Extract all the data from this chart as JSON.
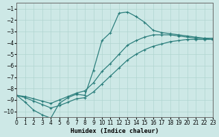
{
  "xlabel": "Humidex (Indice chaleur)",
  "background_color": "#cde8e6",
  "grid_color": "#b0d4d0",
  "line_color": "#2a7d7b",
  "xlim": [
    0,
    23
  ],
  "ylim": [
    -10.5,
    -0.5
  ],
  "yticks": [
    -10,
    -9,
    -8,
    -7,
    -6,
    -5,
    -4,
    -3,
    -2,
    -1
  ],
  "xticks": [
    0,
    1,
    2,
    3,
    4,
    5,
    6,
    7,
    8,
    9,
    10,
    11,
    12,
    13,
    14,
    15,
    16,
    17,
    18,
    19,
    20,
    21,
    22,
    23
  ],
  "line1_x": [
    0,
    1,
    2,
    3,
    4,
    5,
    6,
    7,
    8,
    9,
    10,
    11,
    12,
    13,
    14,
    15,
    16,
    17,
    18,
    19,
    20,
    21,
    22,
    23
  ],
  "line1_y": [
    -8.6,
    -9.2,
    -9.9,
    -10.3,
    -10.6,
    -9.3,
    -8.8,
    -8.5,
    -8.6,
    -6.4,
    -3.8,
    -3.1,
    -1.4,
    -1.3,
    -1.7,
    -2.2,
    -2.9,
    -3.1,
    -3.2,
    -3.3,
    -3.4,
    -3.5,
    -3.6,
    -3.7
  ],
  "line2_x": [
    0,
    1,
    2,
    3,
    4,
    5,
    6,
    7,
    8,
    9,
    10,
    11,
    12,
    13,
    14,
    15,
    16,
    17,
    18,
    19,
    20,
    21,
    22,
    23
  ],
  "line2_y": [
    -8.6,
    -8.7,
    -8.9,
    -9.1,
    -9.3,
    -9.0,
    -8.7,
    -8.4,
    -8.2,
    -7.5,
    -6.5,
    -5.8,
    -5.0,
    -4.2,
    -3.8,
    -3.5,
    -3.3,
    -3.3,
    -3.3,
    -3.4,
    -3.5,
    -3.6,
    -3.6,
    -3.6
  ],
  "line3_x": [
    0,
    1,
    2,
    3,
    4,
    5,
    6,
    7,
    8,
    9,
    10,
    11,
    12,
    13,
    14,
    15,
    16,
    17,
    18,
    19,
    20,
    21,
    22,
    23
  ],
  "line3_y": [
    -8.6,
    -8.8,
    -9.1,
    -9.4,
    -9.7,
    -9.5,
    -9.2,
    -8.9,
    -8.8,
    -8.3,
    -7.6,
    -6.9,
    -6.2,
    -5.5,
    -5.0,
    -4.6,
    -4.3,
    -4.1,
    -3.9,
    -3.8,
    -3.7,
    -3.7,
    -3.7,
    -3.7
  ]
}
